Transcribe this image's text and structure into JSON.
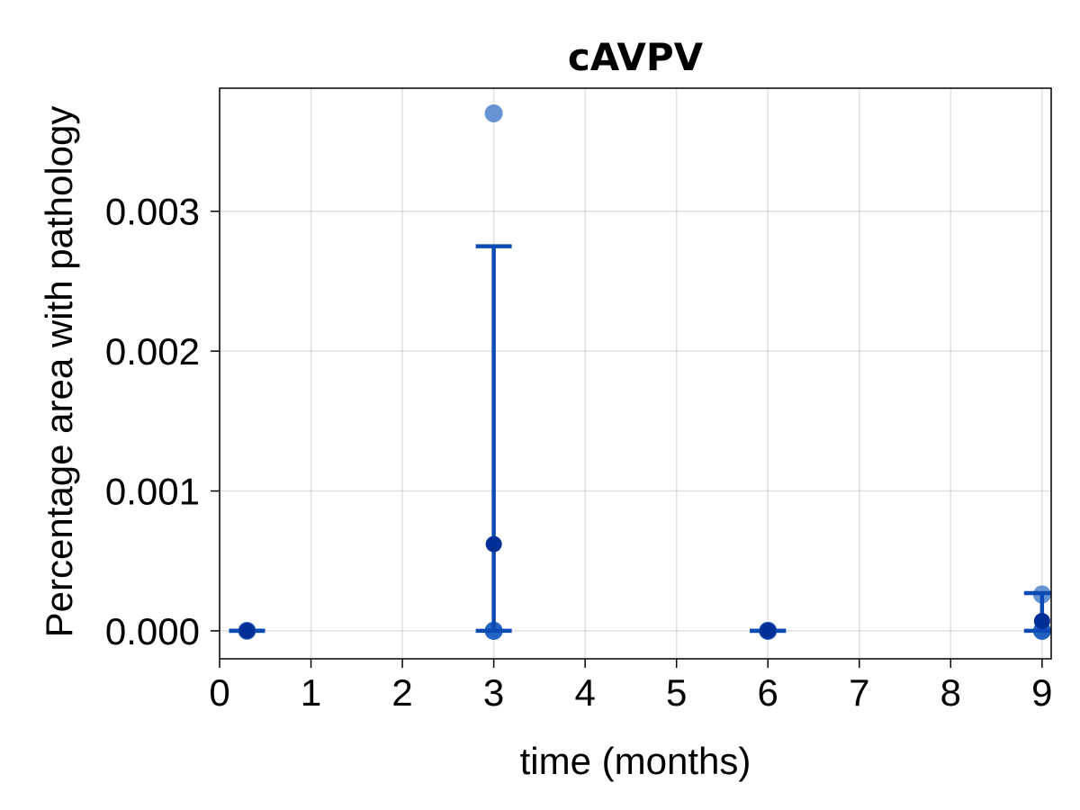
{
  "chart_data": {
    "type": "scatter",
    "title": "cAVPV",
    "xlabel": "time (months)",
    "ylabel": "Percentage area with pathology",
    "xlim": [
      0,
      9.1
    ],
    "ylim": [
      -0.0002,
      0.00388
    ],
    "xticks": [
      0,
      1,
      2,
      3,
      4,
      5,
      6,
      7,
      8,
      9
    ],
    "xtick_labels": [
      "0",
      "1",
      "2",
      "3",
      "4",
      "5",
      "6",
      "7",
      "8",
      "9"
    ],
    "yticks": [
      0.0,
      0.001,
      0.002,
      0.003
    ],
    "ytick_labels": [
      "0.000",
      "0.001",
      "0.002",
      "0.003"
    ],
    "grid": true,
    "colors": {
      "point_light": "#5b8bd0",
      "point_mid": "#1f5fbf",
      "mean_point": "#002f96",
      "errorbar": "#0b4bb3"
    },
    "points": [
      {
        "x": 0.3,
        "y": 0.0
      },
      {
        "x": 3,
        "y": 0.0037
      },
      {
        "x": 3,
        "y": 0.0
      },
      {
        "x": 3,
        "y": 0.0
      },
      {
        "x": 6,
        "y": 0.0
      },
      {
        "x": 6,
        "y": 0.0
      },
      {
        "x": 9,
        "y": 0.00026
      },
      {
        "x": 9,
        "y": 0.0
      },
      {
        "x": 9,
        "y": 0.0
      }
    ],
    "means": [
      {
        "x": 0.3,
        "y": 0.0,
        "err_low": 0.0,
        "err_high": 0.0
      },
      {
        "x": 3,
        "y": 0.00062,
        "err_low": 0.00062,
        "err_high": 0.00213
      },
      {
        "x": 6,
        "y": 0.0,
        "err_low": 0.0,
        "err_high": 0.0
      },
      {
        "x": 9,
        "y": 7e-05,
        "err_low": 7e-05,
        "err_high": 0.0002
      }
    ]
  }
}
